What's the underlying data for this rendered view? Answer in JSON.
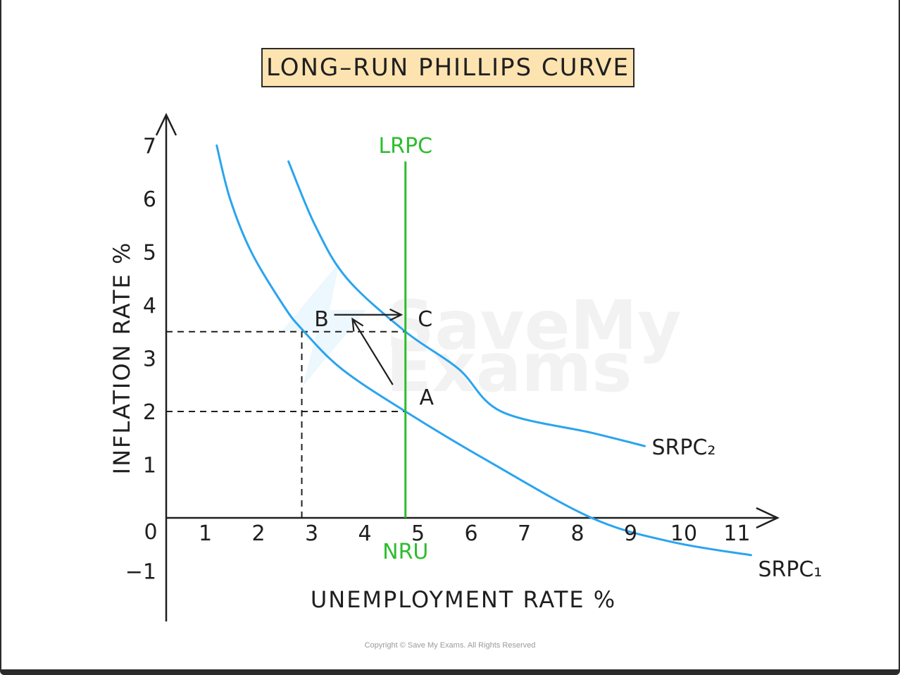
{
  "title": "LONG–RUN PHILLIPS CURVE",
  "copyright": "Copyright © Save My Exams. All Rights Reserved",
  "watermark": [
    "SaveMy",
    "Exams"
  ],
  "colors": {
    "curve": "#2aa4ef",
    "lrpc": "#2dbd2d",
    "axis": "#1f1f1f",
    "title_bg": "#fde3b0"
  },
  "chart_data": {
    "type": "line",
    "title": "LONG–RUN PHILLIPS CURVE",
    "xlabel": "UNEMPLOYMENT RATE %",
    "ylabel": "INFLATION RATE %",
    "origin_label": "0",
    "x_ticks": [
      "1",
      "2",
      "3",
      "4",
      "5",
      "6",
      "7",
      "8",
      "9",
      "10",
      "11"
    ],
    "y_ticks": [
      "−1",
      "1",
      "2",
      "3",
      "4",
      "5",
      "6",
      "7"
    ],
    "xlim": [
      0,
      11.5
    ],
    "ylim": [
      -1.5,
      7.5
    ],
    "series": [
      {
        "name": "SRPC₁",
        "points": [
          [
            0.95,
            7.0
          ],
          [
            1.2,
            6.0
          ],
          [
            1.6,
            5.0
          ],
          [
            2.2,
            4.0
          ],
          [
            2.55,
            3.55
          ],
          [
            3.3,
            2.8
          ],
          [
            4.5,
            2.0
          ],
          [
            6.0,
            1.1
          ],
          [
            8.0,
            0.0
          ],
          [
            9.5,
            -0.45
          ],
          [
            11.0,
            -0.7
          ]
        ]
      },
      {
        "name": "SRPC₂",
        "points": [
          [
            2.3,
            6.7
          ],
          [
            2.8,
            5.5
          ],
          [
            3.4,
            4.5
          ],
          [
            4.5,
            3.5
          ],
          [
            5.5,
            2.8
          ],
          [
            6.3,
            2.0
          ],
          [
            8.0,
            1.6
          ],
          [
            9.0,
            1.35
          ]
        ]
      }
    ],
    "lrpc": {
      "name": "LRPC",
      "x": 4.5,
      "y_range": [
        0,
        6.7
      ]
    },
    "nru": {
      "label": "NRU",
      "x": 4.5
    },
    "reference_lines": [
      {
        "from": [
          0,
          3.5
        ],
        "to": [
          4.5,
          3.5
        ]
      },
      {
        "from": [
          0,
          2.0
        ],
        "to": [
          4.5,
          2.0
        ]
      },
      {
        "from": [
          2.55,
          0
        ],
        "to": [
          2.55,
          3.5
        ]
      }
    ],
    "points": [
      {
        "label": "A",
        "x": 4.5,
        "y": 2.0
      },
      {
        "label": "B",
        "x": 2.55,
        "y": 3.5
      },
      {
        "label": "C",
        "x": 4.5,
        "y": 3.5
      }
    ],
    "movements": [
      {
        "from": "A",
        "to": "B"
      },
      {
        "from": "B",
        "to": "C"
      }
    ]
  }
}
